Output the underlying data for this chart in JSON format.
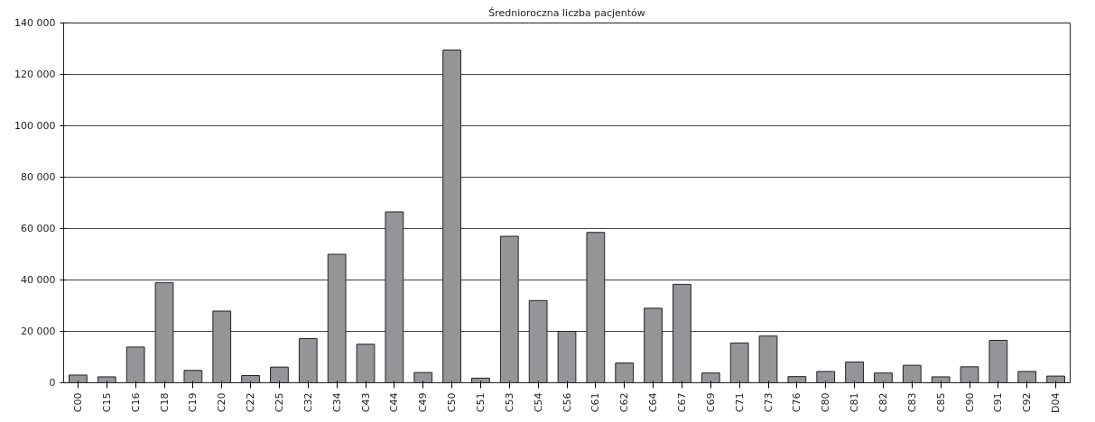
{
  "chart_data": {
    "type": "bar",
    "title": "Średnioroczna liczba pacjentów",
    "categories": [
      "C00",
      "C15",
      "C16",
      "C18",
      "C19",
      "C20",
      "C22",
      "C25",
      "C32",
      "C34",
      "C43",
      "C44",
      "C49",
      "C50",
      "C51",
      "C53",
      "C54",
      "C56",
      "C61",
      "C62",
      "C64",
      "C67",
      "C69",
      "C71",
      "C73",
      "C76",
      "C80",
      "C81",
      "C82",
      "C83",
      "C85",
      "C90",
      "C91",
      "C92",
      "D04"
    ],
    "values": [
      3000,
      2300,
      13900,
      39000,
      4800,
      27900,
      2800,
      6100,
      17200,
      50000,
      15000,
      66500,
      4000,
      129500,
      1800,
      57000,
      32000,
      20000,
      58500,
      7700,
      29000,
      38300,
      3800,
      15500,
      18200,
      2400,
      4400,
      8100,
      3800,
      6800,
      2300,
      6200,
      16500,
      4400,
      2600
    ],
    "color": "#939598",
    "ylim": [
      0,
      140000
    ],
    "yticks": [
      0,
      {
        "value": 20000,
        "label": "20 000"
      },
      {
        "value": 40000,
        "label": "40 000"
      },
      {
        "value": 60000,
        "label": "60 000"
      },
      {
        "value": 80000,
        "label": "80 000"
      },
      {
        "value": 100000,
        "label": "100 000"
      },
      {
        "value": 120000,
        "label": "120 000"
      },
      {
        "value": 140000,
        "label": "140 000"
      }
    ],
    "grid": "y"
  }
}
